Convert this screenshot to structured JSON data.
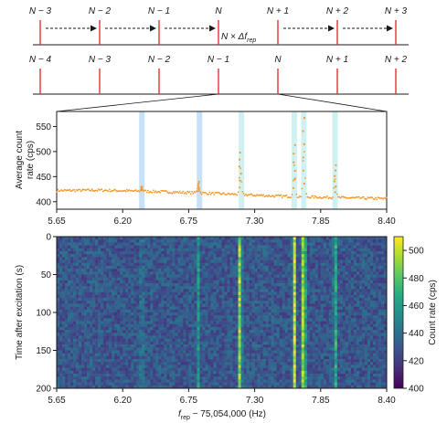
{
  "comb_diagram": {
    "top_row_labels": [
      "N − 3",
      "N − 2",
      "N − 1",
      "N",
      "N + 1",
      "N + 2",
      "N + 3"
    ],
    "bottom_row_labels": [
      "N − 4",
      "N − 3",
      "N − 2",
      "N − 1",
      "N",
      "N + 1",
      "N + 2"
    ],
    "shift_label_prefix": "N × Δf",
    "shift_label_subscript": "rep",
    "line_color": "#e8312f",
    "arrow_style": "dashed"
  },
  "chart_data": [
    {
      "type": "scatter",
      "title": "",
      "ylabel": "Average count rate (cps)",
      "xlabel": "",
      "xlim": [
        5.65,
        8.4
      ],
      "ylim": [
        385,
        580
      ],
      "xticks": [
        "5.65",
        "6.20",
        "6.75",
        "7.30",
        "7.85",
        "8.40"
      ],
      "yticks": [
        "400",
        "450",
        "500",
        "550"
      ],
      "point_color": "#f39a2c",
      "baseline": {
        "x": [
          5.65,
          6.0,
          6.5,
          7.0,
          7.5,
          8.0,
          8.4
        ],
        "y": [
          422,
          423,
          420,
          416,
          411,
          408,
          406
        ]
      },
      "peaks": [
        {
          "x": 6.36,
          "height": 430
        },
        {
          "x": 6.83,
          "height": 440
        },
        {
          "x": 7.18,
          "height": 498
        },
        {
          "x": 7.63,
          "height": 513
        },
        {
          "x": 7.71,
          "height": 567
        },
        {
          "x": 7.97,
          "height": 473
        }
      ],
      "highlight_bands": [
        {
          "x": 6.36,
          "color": "#bcdcf7"
        },
        {
          "x": 6.84,
          "color": "#bcdcf7"
        },
        {
          "x": 7.19,
          "color": "#c8eef0"
        },
        {
          "x": 7.63,
          "color": "#c8eef0"
        },
        {
          "x": 7.71,
          "color": "#c8eef0"
        },
        {
          "x": 7.97,
          "color": "#c8eef0"
        }
      ]
    },
    {
      "type": "heatmap",
      "xlabel_main": "f",
      "xlabel_sub": "rep",
      "xlabel_rest": " − 75,054,000 (Hz)",
      "ylabel": "Time after excitation (s)",
      "xlim": [
        5.65,
        8.4
      ],
      "ylim": [
        0,
        200
      ],
      "xticks": [
        "5.65",
        "6.20",
        "6.75",
        "7.30",
        "7.85",
        "8.40"
      ],
      "yticks": [
        "0",
        "50",
        "100",
        "150",
        "200"
      ],
      "colorbar_label": "Count rate (cps)",
      "colorbar_range": [
        400,
        510
      ],
      "colorbar_ticks": [
        "400",
        "420",
        "440",
        "460",
        "480",
        "500"
      ],
      "colormap": [
        "#440154",
        "#472d7b",
        "#3b528b",
        "#2c728e",
        "#21918c",
        "#28ae80",
        "#5ec962",
        "#addc30",
        "#fde725"
      ],
      "resonance_lines": [
        {
          "x": 6.36,
          "strength": 0.15
        },
        {
          "x": 6.83,
          "strength": 0.25
        },
        {
          "x": 7.18,
          "strength": 0.75
        },
        {
          "x": 7.63,
          "strength": 0.7
        },
        {
          "x": 7.71,
          "strength": 0.95
        },
        {
          "x": 7.97,
          "strength": 0.45
        }
      ]
    }
  ]
}
